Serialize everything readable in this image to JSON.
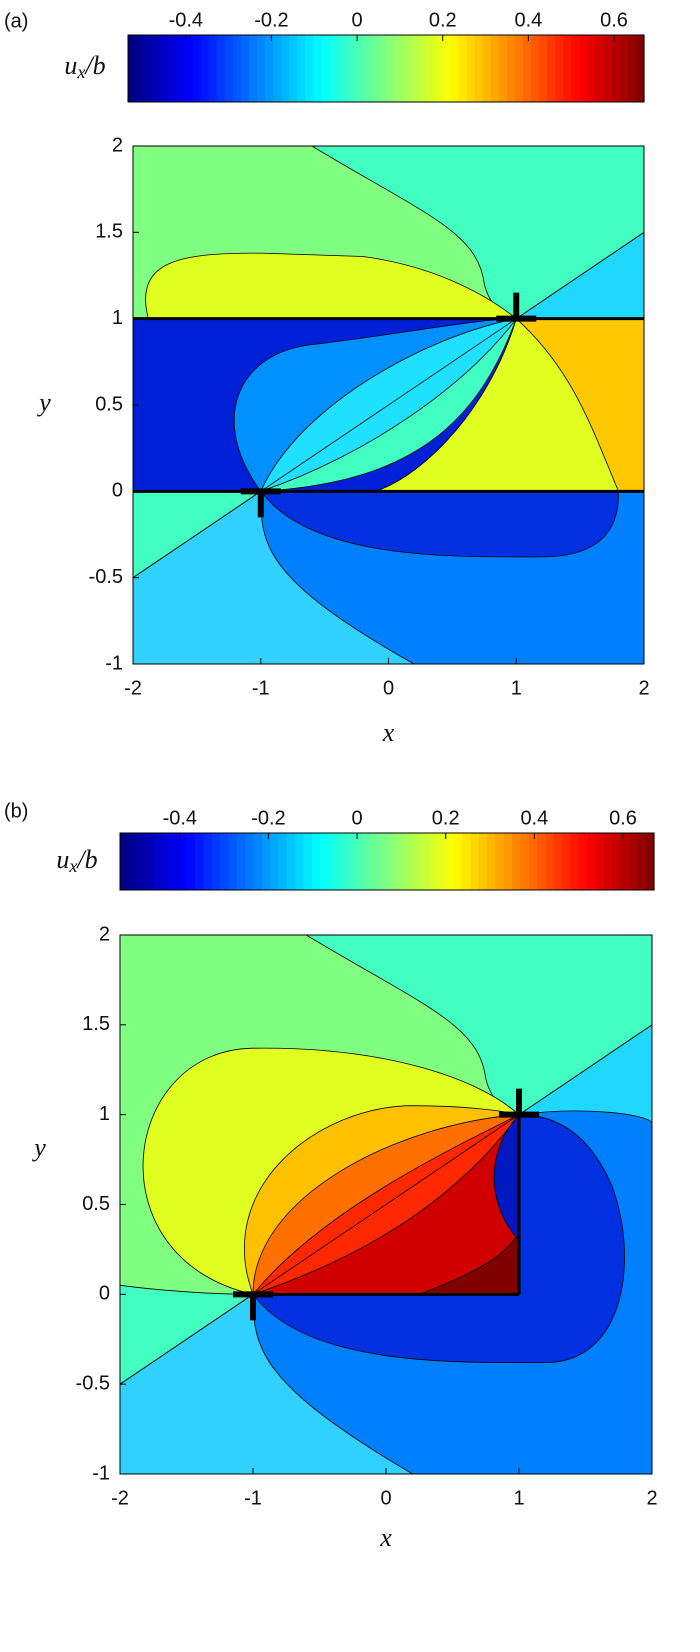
{
  "chart_data": [
    {
      "type": "contour",
      "panel_label": "(a)",
      "colorbar_label": "ux/b",
      "clim": [
        -0.535,
        0.67
      ],
      "cticks": [
        -0.4,
        -0.2,
        0,
        0.2,
        0.4,
        0.6
      ],
      "xlabel": "x",
      "ylabel": "y",
      "xlim": [
        -2,
        2
      ],
      "ylim": [
        -1,
        2
      ],
      "xticks": [
        -2,
        -1,
        0,
        1,
        2
      ],
      "yticks": [
        -1,
        -0.5,
        0,
        0.5,
        1,
        1.5,
        2
      ]
    },
    {
      "type": "contour",
      "panel_label": "(b)",
      "colorbar_label": "ux/b",
      "clim": [
        -0.535,
        0.67
      ],
      "cticks": [
        -0.4,
        -0.2,
        0,
        0.2,
        0.4,
        0.6
      ],
      "xlabel": "x",
      "ylabel": "y",
      "xlim": [
        -2,
        2
      ],
      "ylim": [
        -1,
        2
      ],
      "xticks": [
        -2,
        -1,
        0,
        1,
        2
      ],
      "yticks": [
        -1,
        -0.5,
        0,
        0.5,
        1,
        1.5,
        2
      ]
    }
  ]
}
